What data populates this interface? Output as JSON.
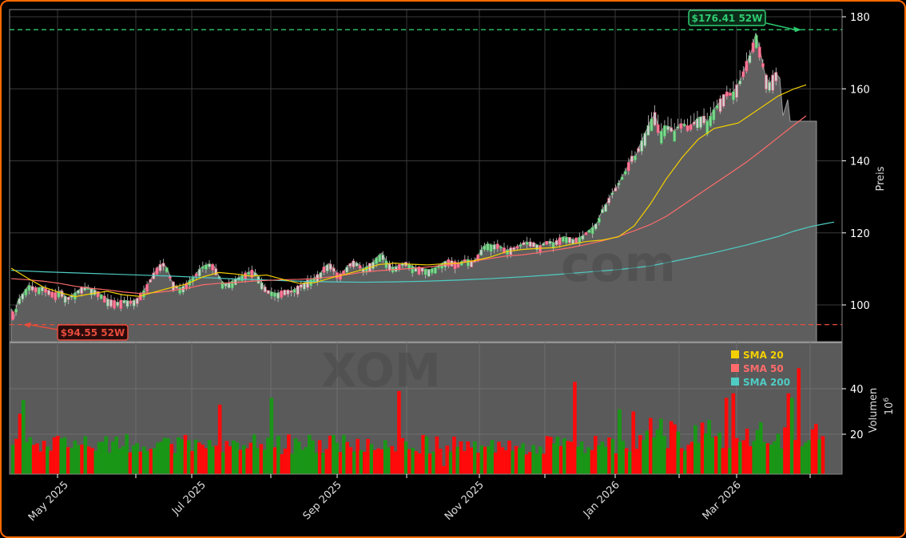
{
  "chart_data": {
    "type": "candlestick",
    "ticker": "XOM",
    "watermark": [
      "XOM",
      "...com"
    ],
    "price_axis": {
      "label": "Preis",
      "ticks": [
        100,
        120,
        140,
        160,
        180
      ],
      "range": [
        89.5,
        181
      ]
    },
    "volume_axis": {
      "label": "Volumen",
      "multiplier_label": "10",
      "multiplier_exp": "6",
      "ticks": [
        20,
        40
      ],
      "range": [
        2,
        59
      ]
    },
    "x_axis": {
      "labels": [
        "May 2025",
        "Jul 2025",
        "Sep 2025",
        "Nov 2025",
        "Jan 2026",
        "Mar 2026"
      ]
    },
    "high_52w": {
      "value": 176.41,
      "label": "$176.41 52W",
      "color": "#2ecc71"
    },
    "low_52w": {
      "value": 94.55,
      "label": "$94.55 52W",
      "color": "#e74c3c"
    },
    "legend": [
      {
        "label": "SMA 20",
        "color": "#f5d000"
      },
      {
        "label": "SMA 50",
        "color": "#ff6b6b"
      },
      {
        "label": "SMA 200",
        "color": "#4ecdc4"
      }
    ],
    "price_path": [
      [
        0,
        99
      ],
      [
        4,
        96.5
      ],
      [
        8,
        101
      ],
      [
        14,
        103
      ],
      [
        22,
        105.5
      ],
      [
        30,
        104.6
      ],
      [
        38,
        105
      ],
      [
        46,
        104
      ],
      [
        54,
        103
      ],
      [
        62,
        104
      ],
      [
        70,
        101.8
      ],
      [
        78,
        103
      ],
      [
        86,
        104.4
      ],
      [
        94,
        105
      ],
      [
        102,
        104.5
      ],
      [
        110,
        103.3
      ],
      [
        118,
        102
      ],
      [
        126,
        101
      ],
      [
        134,
        100.7
      ],
      [
        142,
        101.3
      ],
      [
        150,
        101
      ],
      [
        158,
        101.6
      ],
      [
        166,
        104
      ],
      [
        172,
        106
      ],
      [
        178,
        108.5
      ],
      [
        184,
        110.5
      ],
      [
        190,
        111.6
      ],
      [
        196,
        110
      ],
      [
        200,
        107
      ],
      [
        206,
        105
      ],
      [
        212,
        104.8
      ],
      [
        218,
        105.5
      ],
      [
        224,
        107
      ],
      [
        230,
        108
      ],
      [
        236,
        110
      ],
      [
        242,
        111
      ],
      [
        248,
        111.4
      ],
      [
        254,
        110.8
      ],
      [
        260,
        108
      ],
      [
        266,
        105.8
      ],
      [
        272,
        106
      ],
      [
        278,
        106.8
      ],
      [
        284,
        107.5
      ],
      [
        290,
        108.2
      ],
      [
        296,
        109
      ],
      [
        302,
        109.4
      ],
      [
        308,
        108.5
      ],
      [
        314,
        106
      ],
      [
        320,
        104
      ],
      [
        326,
        103.6
      ],
      [
        332,
        103.2
      ],
      [
        338,
        103.6
      ],
      [
        344,
        104
      ],
      [
        350,
        103.8
      ],
      [
        356,
        104.5
      ],
      [
        362,
        105.4
      ],
      [
        370,
        106.5
      ],
      [
        378,
        107.3
      ],
      [
        386,
        108.5
      ],
      [
        392,
        110.5
      ],
      [
        398,
        111.5
      ],
      [
        404,
        110
      ],
      [
        410,
        108
      ],
      [
        416,
        109.3
      ],
      [
        422,
        111
      ],
      [
        428,
        112
      ],
      [
        434,
        111.5
      ],
      [
        440,
        110
      ],
      [
        446,
        110.8
      ],
      [
        452,
        111.6
      ],
      [
        458,
        113.3
      ],
      [
        464,
        114.4
      ],
      [
        470,
        112
      ],
      [
        476,
        110.5
      ],
      [
        482,
        110.6
      ],
      [
        488,
        111.3
      ],
      [
        494,
        111.7
      ],
      [
        500,
        111
      ],
      [
        506,
        110.3
      ],
      [
        512,
        110.2
      ],
      [
        518,
        110
      ],
      [
        524,
        109.8
      ],
      [
        530,
        110.3
      ],
      [
        536,
        111
      ],
      [
        542,
        112
      ],
      [
        548,
        112.3
      ],
      [
        554,
        111.8
      ],
      [
        560,
        111.5
      ],
      [
        566,
        112.4
      ],
      [
        572,
        112.6
      ],
      [
        578,
        111.7
      ],
      [
        584,
        113.5
      ],
      [
        590,
        116
      ],
      [
        596,
        117
      ],
      [
        602,
        116.6
      ],
      [
        608,
        116.8
      ],
      [
        614,
        116
      ],
      [
        620,
        115.2
      ],
      [
        626,
        115.6
      ],
      [
        632,
        116
      ],
      [
        638,
        116.8
      ],
      [
        644,
        117.5
      ],
      [
        650,
        117.3
      ],
      [
        656,
        117
      ],
      [
        662,
        116.2
      ],
      [
        668,
        117.4
      ],
      [
        674,
        117.7
      ],
      [
        680,
        117.2
      ],
      [
        686,
        118.3
      ],
      [
        692,
        119
      ],
      [
        698,
        118.6
      ],
      [
        704,
        118.1
      ],
      [
        710,
        118.6
      ],
      [
        716,
        119.3
      ],
      [
        722,
        120.5
      ],
      [
        728,
        121.6
      ],
      [
        734,
        123
      ],
      [
        740,
        126.5
      ],
      [
        746,
        128.5
      ],
      [
        752,
        131
      ],
      [
        758,
        132.8
      ],
      [
        764,
        135.3
      ],
      [
        770,
        137.6
      ],
      [
        776,
        141
      ],
      [
        782,
        141.5
      ],
      [
        788,
        145
      ],
      [
        794,
        148
      ],
      [
        800,
        151.2
      ],
      [
        806,
        153
      ],
      [
        812,
        147.6
      ],
      [
        818,
        149.8
      ],
      [
        824,
        149.5
      ],
      [
        830,
        148.2
      ],
      [
        836,
        150
      ],
      [
        842,
        150.3
      ],
      [
        848,
        149.3
      ],
      [
        854,
        150.5
      ],
      [
        860,
        152
      ],
      [
        866,
        152.4
      ],
      [
        872,
        150.8
      ],
      [
        878,
        153.8
      ],
      [
        884,
        155.5
      ],
      [
        890,
        157.4
      ],
      [
        896,
        159
      ],
      [
        902,
        158.6
      ],
      [
        908,
        160.5
      ],
      [
        914,
        163
      ],
      [
        920,
        167
      ],
      [
        926,
        170
      ],
      [
        932,
        175.5
      ],
      [
        938,
        170
      ],
      [
        944,
        163.5
      ],
      [
        950,
        161.5
      ],
      [
        956,
        164.5
      ],
      [
        962,
        163
      ],
      [
        966,
        152.5
      ],
      [
        972,
        157
      ],
      [
        975,
        151
      ],
      [
        990,
        151
      ],
      [
        1000,
        151
      ],
      [
        1008,
        151
      ],
      [
        1008,
        90
      ]
    ],
    "sma20": [
      [
        0,
        110.2
      ],
      [
        20,
        107.5
      ],
      [
        40,
        105
      ],
      [
        60,
        103.5
      ],
      [
        80,
        102.3
      ],
      [
        100,
        103.1
      ],
      [
        120,
        103.8
      ],
      [
        140,
        102.8
      ],
      [
        160,
        102.4
      ],
      [
        180,
        103.6
      ],
      [
        200,
        104.8
      ],
      [
        220,
        105.8
      ],
      [
        240,
        107.8
      ],
      [
        260,
        109
      ],
      [
        280,
        108.6
      ],
      [
        300,
        108
      ],
      [
        320,
        108.3
      ],
      [
        340,
        107.1
      ],
      [
        360,
        106
      ],
      [
        380,
        106.2
      ],
      [
        400,
        107.5
      ],
      [
        420,
        108.6
      ],
      [
        440,
        109.8
      ],
      [
        460,
        111.2
      ],
      [
        480,
        111.6
      ],
      [
        500,
        111.3
      ],
      [
        520,
        111.1
      ],
      [
        540,
        111.4
      ],
      [
        560,
        111.6
      ],
      [
        580,
        112.3
      ],
      [
        600,
        113.3
      ],
      [
        620,
        114.8
      ],
      [
        640,
        115.4
      ],
      [
        660,
        115.7
      ],
      [
        680,
        115.9
      ],
      [
        700,
        116.8
      ],
      [
        720,
        117.6
      ],
      [
        740,
        118
      ],
      [
        760,
        118.9
      ],
      [
        780,
        122
      ],
      [
        800,
        128
      ],
      [
        820,
        135
      ],
      [
        840,
        141
      ],
      [
        860,
        146
      ],
      [
        880,
        149
      ],
      [
        900,
        150
      ],
      [
        910,
        150.5
      ],
      [
        920,
        152
      ],
      [
        940,
        155
      ],
      [
        960,
        158
      ],
      [
        980,
        160
      ],
      [
        995,
        161.1
      ]
    ],
    "sma50": [
      [
        0,
        107.3
      ],
      [
        20,
        107
      ],
      [
        40,
        106.6
      ],
      [
        60,
        106
      ],
      [
        80,
        105.2
      ],
      [
        100,
        104.6
      ],
      [
        120,
        104.2
      ],
      [
        140,
        103.6
      ],
      [
        160,
        103.2
      ],
      [
        180,
        103.4
      ],
      [
        200,
        103.9
      ],
      [
        220,
        104.6
      ],
      [
        240,
        105.6
      ],
      [
        260,
        106
      ],
      [
        280,
        106.2
      ],
      [
        300,
        106.6
      ],
      [
        320,
        106.8
      ],
      [
        340,
        107
      ],
      [
        360,
        107.1
      ],
      [
        380,
        107.3
      ],
      [
        400,
        107.8
      ],
      [
        420,
        108.4
      ],
      [
        440,
        109.1
      ],
      [
        460,
        109.5
      ],
      [
        480,
        109.8
      ],
      [
        500,
        110.1
      ],
      [
        520,
        110.5
      ],
      [
        540,
        111
      ],
      [
        560,
        111.6
      ],
      [
        580,
        112.2
      ],
      [
        600,
        112.9
      ],
      [
        620,
        113.6
      ],
      [
        640,
        113.9
      ],
      [
        660,
        114.5
      ],
      [
        680,
        115.2
      ],
      [
        700,
        115.9
      ],
      [
        720,
        116.8
      ],
      [
        740,
        117.8
      ],
      [
        760,
        119
      ],
      [
        780,
        120.6
      ],
      [
        800,
        122.3
      ],
      [
        820,
        124.6
      ],
      [
        840,
        127.6
      ],
      [
        860,
        130.6
      ],
      [
        880,
        133.6
      ],
      [
        900,
        136.6
      ],
      [
        920,
        139.6
      ],
      [
        940,
        143
      ],
      [
        960,
        146.5
      ],
      [
        980,
        150
      ],
      [
        995,
        152.5
      ]
    ],
    "sma200": [
      [
        0,
        109.6
      ],
      [
        40,
        109.2
      ],
      [
        80,
        108.9
      ],
      [
        120,
        108.6
      ],
      [
        160,
        108.3
      ],
      [
        200,
        108
      ],
      [
        240,
        107.6
      ],
      [
        280,
        107.2
      ],
      [
        320,
        106.9
      ],
      [
        360,
        106.6
      ],
      [
        400,
        106.4
      ],
      [
        440,
        106.3
      ],
      [
        480,
        106.4
      ],
      [
        520,
        106.6
      ],
      [
        560,
        106.9
      ],
      [
        600,
        107.3
      ],
      [
        640,
        107.8
      ],
      [
        680,
        108.4
      ],
      [
        720,
        109.1
      ],
      [
        760,
        109.8
      ],
      [
        800,
        110.8
      ],
      [
        840,
        112.6
      ],
      [
        880,
        114.5
      ],
      [
        920,
        116.6
      ],
      [
        960,
        119
      ],
      [
        980,
        120.5
      ],
      [
        1000,
        121.7
      ],
      [
        1020,
        122.6
      ],
      [
        1030,
        123
      ]
    ],
    "volume_bars_seed": 20250401,
    "volume_bars_count": 236
  }
}
